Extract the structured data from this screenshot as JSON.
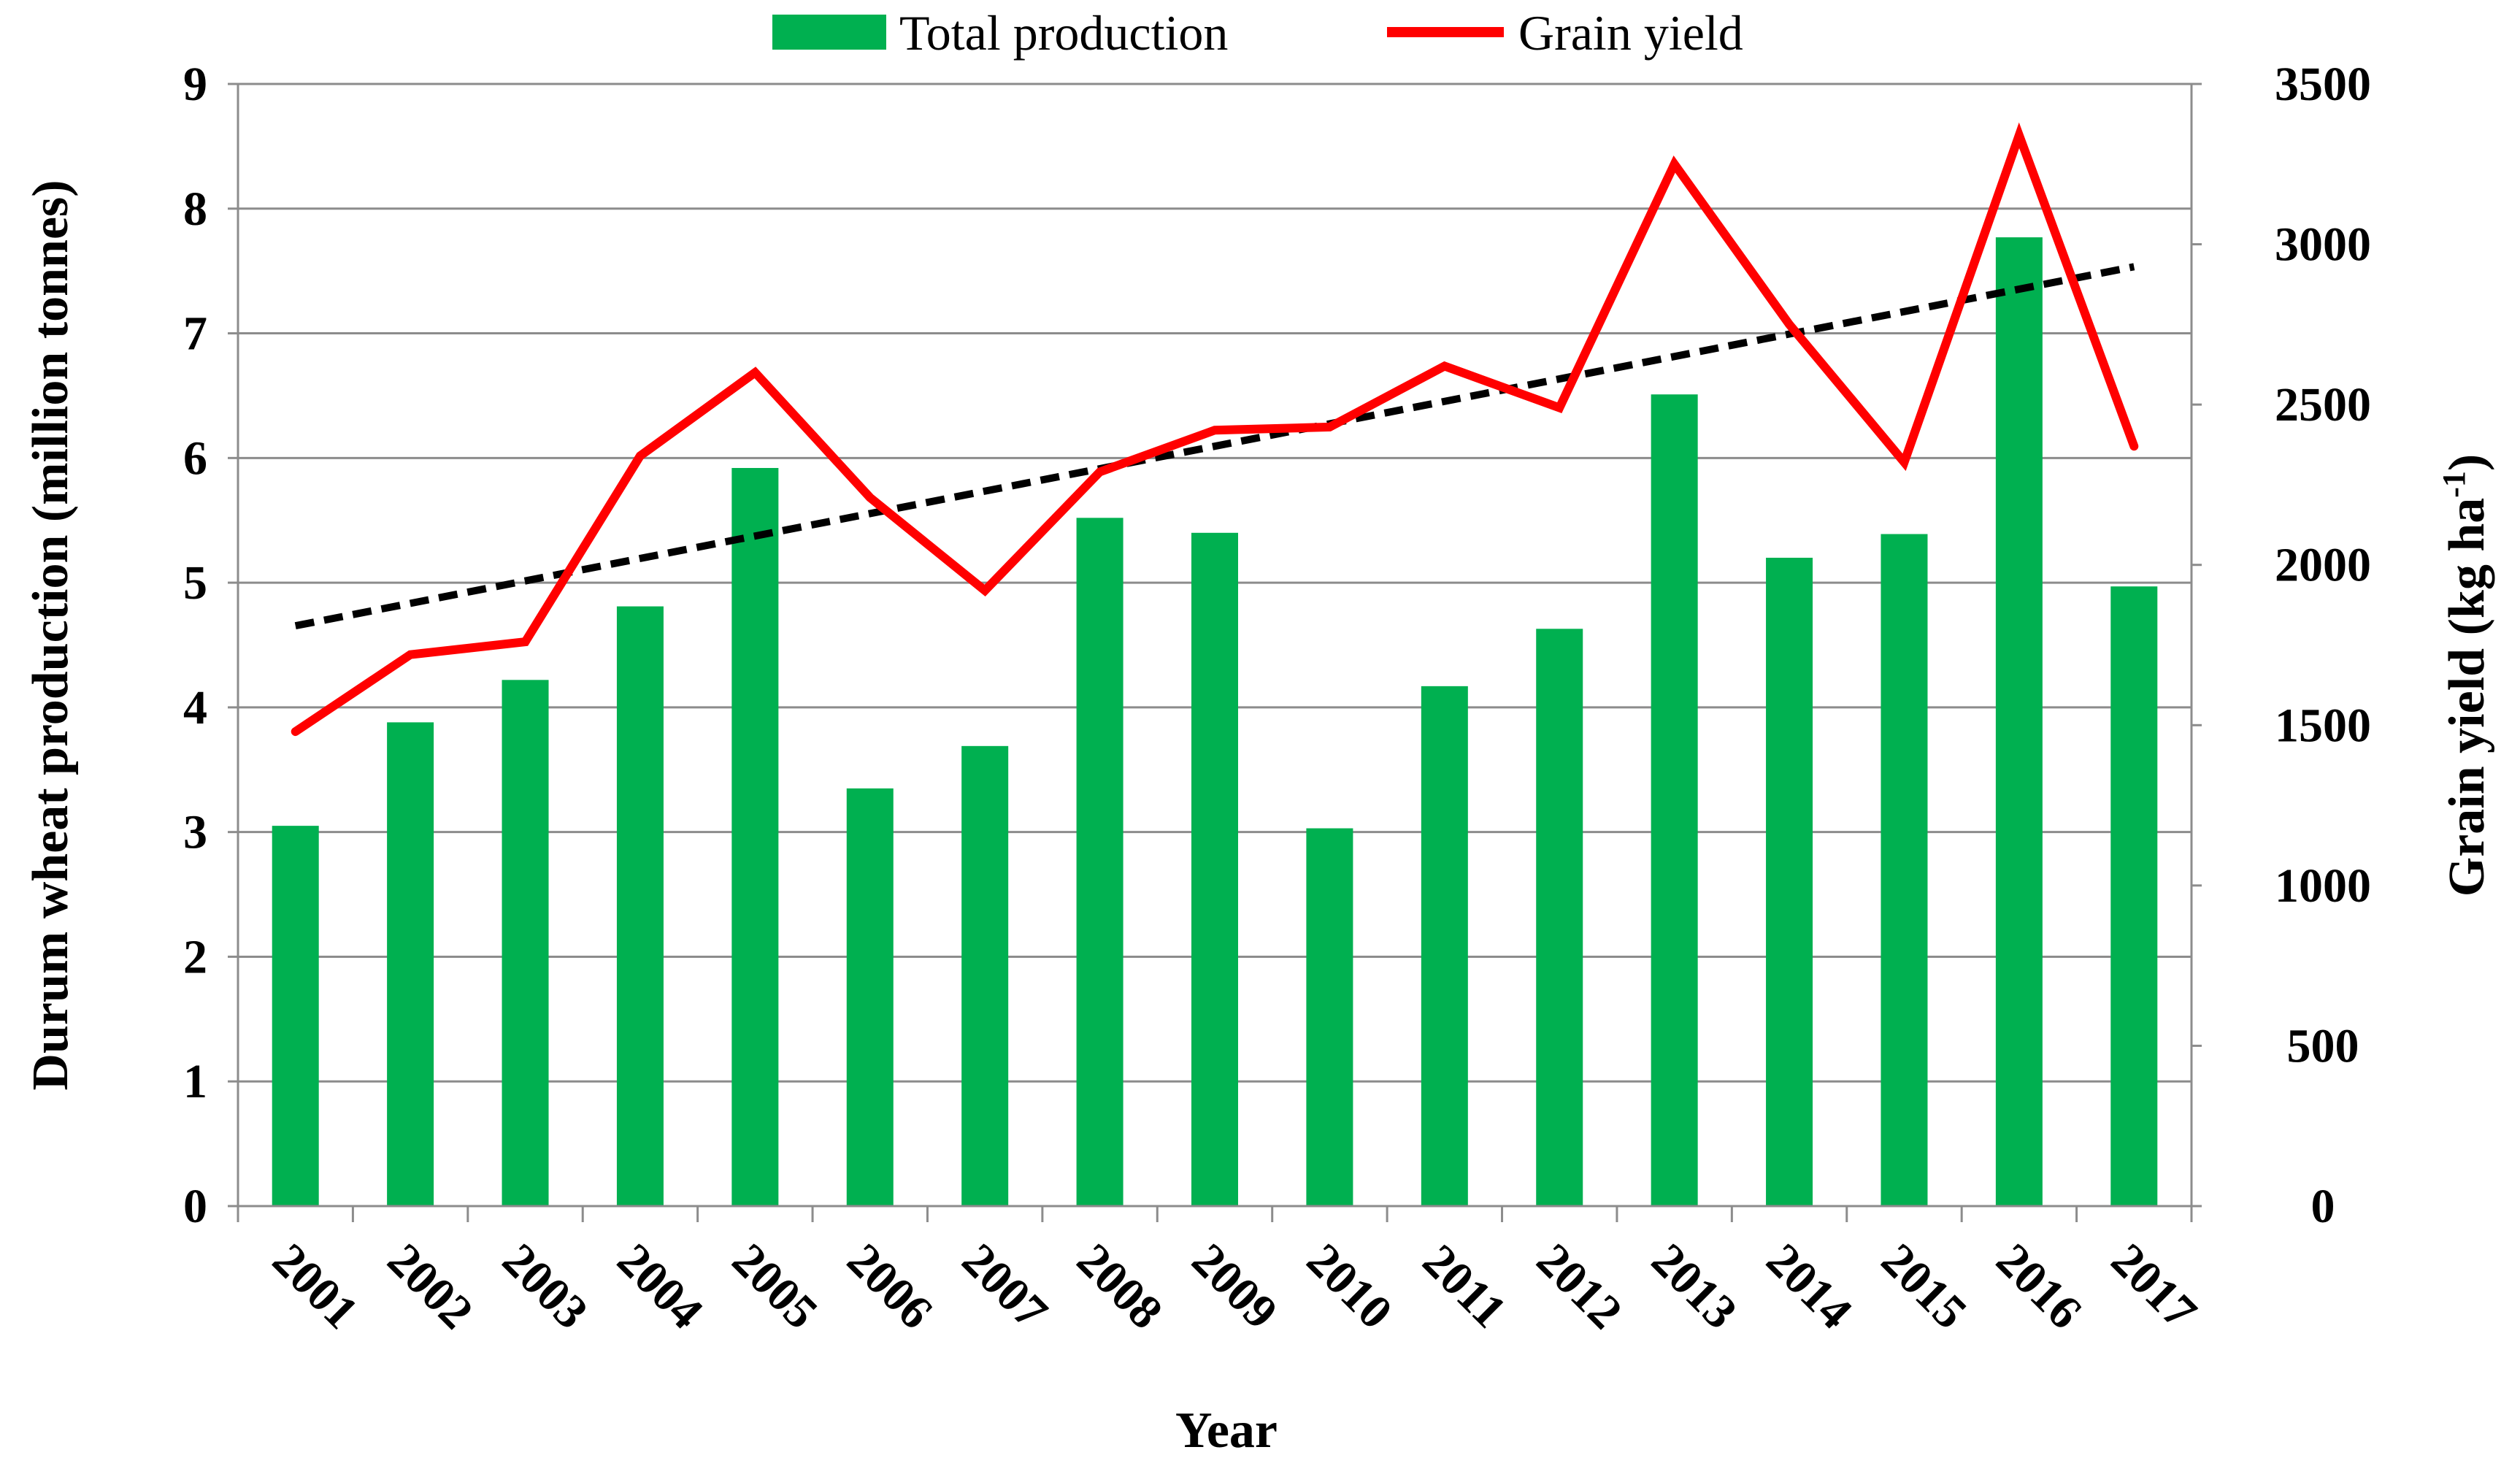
{
  "chart_data": {
    "type": "bar+line",
    "x_label": "Year",
    "categories": [
      "2001",
      "2002",
      "2003",
      "2004",
      "2005",
      "2006",
      "2007",
      "2008",
      "2009",
      "2010",
      "2011",
      "2012",
      "2013",
      "2014",
      "2015",
      "2016",
      "2017"
    ],
    "bar_series": {
      "name": "Total production",
      "axis": "left",
      "color": "#00b050",
      "values": [
        3.05,
        3.88,
        4.22,
        4.81,
        5.92,
        3.35,
        3.69,
        5.52,
        5.4,
        3.03,
        4.17,
        4.63,
        6.51,
        5.2,
        5.39,
        7.77,
        4.97
      ]
    },
    "line_series": {
      "name": "Grain yield",
      "axis": "right",
      "color": "#ff0000",
      "values": [
        1480,
        1720,
        1760,
        2340,
        2600,
        2210,
        1920,
        2290,
        2420,
        2430,
        2620,
        2490,
        3250,
        2750,
        2320,
        3340,
        2370
      ]
    },
    "trendline": {
      "style": "dashed",
      "color": "#000000",
      "start_value": 1810,
      "end_value": 2930
    },
    "left_axis": {
      "label": "Durum wheat production (million tonnes)",
      "min": 0,
      "max": 9,
      "ticks": [
        "0",
        "1",
        "2",
        "3",
        "4",
        "5",
        "6",
        "7",
        "8",
        "9"
      ]
    },
    "right_axis": {
      "label_main": "Grain yield (kg ha",
      "label_sup": "-1",
      "label_end": ")",
      "min": 0,
      "max": 3500,
      "ticks": [
        "0",
        "500",
        "1000",
        "1500",
        "2000",
        "2500",
        "3000",
        "3500"
      ]
    },
    "legend": {
      "position": "top-center",
      "items": [
        "Total production",
        "Grain yield"
      ]
    },
    "grid": true
  }
}
